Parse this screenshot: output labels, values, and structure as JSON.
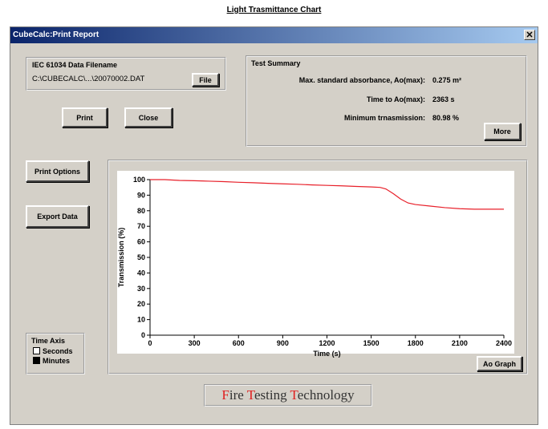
{
  "caption": "Light Trasmittance Chart",
  "window": {
    "title": "CubeCalc:Print Report"
  },
  "file_panel": {
    "label": "IEC 61034 Data Filename",
    "filename": "C:\\CUBECALC\\...\\20070002.DAT",
    "button": "File"
  },
  "buttons": {
    "print": "Print",
    "close": "Close",
    "print_options": "Print Options",
    "export_data": "Export Data",
    "more": "More",
    "ao_graph": "Ao Graph"
  },
  "summary": {
    "title": "Test Summary",
    "rows": [
      {
        "label": "Max. standard absorbance, Ao(max):",
        "value": "0.275 m²"
      },
      {
        "label": "Time to Ao(max):",
        "value": "2363 s"
      },
      {
        "label": "Minimum trnasmission:",
        "value": "80.98 %"
      }
    ]
  },
  "time_axis": {
    "title": "Time Axis",
    "options": [
      "Seconds",
      "Minutes"
    ]
  },
  "footer": {
    "brand": [
      [
        "F",
        "ire"
      ],
      [
        "T",
        "esting"
      ],
      [
        "T",
        "echnology"
      ]
    ]
  },
  "chart_data": {
    "type": "line",
    "x_label": "Time (s)",
    "y_label": "Transmission (%)",
    "xlim": [
      0,
      2400
    ],
    "xticks": [
      0,
      300,
      600,
      900,
      1200,
      1500,
      1800,
      2100,
      2400
    ],
    "ylim": [
      0,
      100
    ],
    "yticks": [
      0,
      10,
      20,
      30,
      40,
      50,
      60,
      70,
      80,
      90,
      100
    ],
    "grid": false,
    "x": [
      0,
      100,
      200,
      300,
      400,
      500,
      600,
      700,
      800,
      900,
      1000,
      1100,
      1200,
      1300,
      1400,
      1500,
      1560,
      1600,
      1650,
      1700,
      1750,
      1800,
      1900,
      2000,
      2100,
      2200,
      2300,
      2400
    ],
    "series": [
      {
        "name": "Transmission",
        "color": "#e8202a",
        "values": [
          100,
          100,
          99.5,
          99.3,
          99,
          98.7,
          98.3,
          98,
          97.6,
          97.3,
          97,
          96.6,
          96.3,
          96,
          95.6,
          95.3,
          95,
          94,
          91,
          87.5,
          85,
          84,
          83,
          82,
          81.3,
          81,
          81,
          81
        ]
      }
    ]
  }
}
